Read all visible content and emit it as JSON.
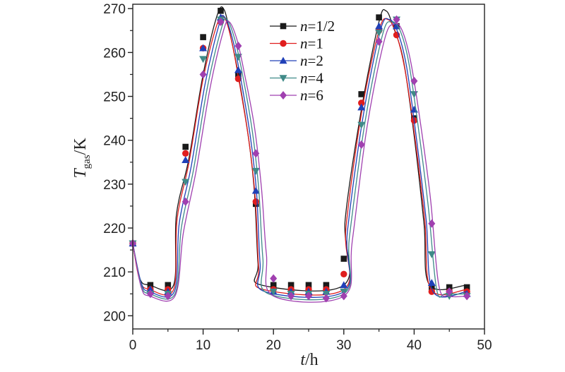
{
  "chart_data": {
    "type": "line",
    "xlabel": {
      "var": "t",
      "unit": "/h"
    },
    "ylabel": {
      "var": "T",
      "sub": "gas",
      "unit": "/K"
    },
    "xlim": [
      0,
      50
    ],
    "ylim": [
      197,
      271
    ],
    "xticks": [
      0,
      10,
      20,
      30,
      40,
      50
    ],
    "yticks": [
      200,
      210,
      220,
      230,
      240,
      250,
      260,
      270
    ],
    "grid": false,
    "legend_position": "top-center",
    "series": [
      {
        "name": "=1/2",
        "var": "n",
        "color": "#1a1a1a",
        "marker": "square",
        "curve": [
          [
            0,
            216.5
          ],
          [
            1,
            208.5
          ],
          [
            2.4,
            207
          ],
          [
            5.8,
            207
          ],
          [
            6.2,
            223
          ],
          [
            8,
            236
          ],
          [
            10,
            255
          ],
          [
            12,
            268.5
          ],
          [
            13,
            269.7
          ],
          [
            14,
            263
          ],
          [
            15,
            255
          ],
          [
            16.5,
            240
          ],
          [
            17.3,
            228
          ],
          [
            17.8,
            212
          ],
          [
            18.3,
            207
          ],
          [
            30,
            207
          ],
          [
            30.2,
            222
          ],
          [
            32.5,
            247
          ],
          [
            35,
            267
          ],
          [
            36,
            269.5
          ],
          [
            37,
            266
          ],
          [
            38.5,
            258
          ],
          [
            40,
            241
          ],
          [
            41.4,
            221
          ],
          [
            42.2,
            207
          ],
          [
            47.5,
            207
          ]
        ],
        "points": [
          [
            0,
            216.5
          ],
          [
            2.5,
            207
          ],
          [
            5,
            207
          ],
          [
            7.5,
            238.5
          ],
          [
            10,
            263.5
          ],
          [
            12.5,
            269.5
          ],
          [
            15,
            255
          ],
          [
            17.5,
            225.5
          ],
          [
            20,
            207
          ],
          [
            22.5,
            207
          ],
          [
            25,
            207
          ],
          [
            27.5,
            207
          ],
          [
            30,
            213
          ],
          [
            32.5,
            250.5
          ],
          [
            35,
            268
          ],
          [
            37.5,
            266
          ],
          [
            40,
            245
          ],
          [
            42.5,
            206.5
          ],
          [
            45,
            206.5
          ],
          [
            47.5,
            206.5
          ]
        ]
      },
      {
        "name": "=1",
        "var": "n",
        "color": "#e01e1e",
        "marker": "circle",
        "curve": [
          [
            0,
            216.5
          ],
          [
            1,
            208
          ],
          [
            2.4,
            206
          ],
          [
            5.8,
            206
          ],
          [
            6.3,
            222
          ],
          [
            8,
            235
          ],
          [
            10,
            254
          ],
          [
            12,
            266.5
          ],
          [
            13,
            268
          ],
          [
            14,
            263
          ],
          [
            15,
            254.5
          ],
          [
            16.5,
            240
          ],
          [
            17.4,
            227
          ],
          [
            17.9,
            211
          ],
          [
            18.5,
            206
          ],
          [
            30,
            206
          ],
          [
            30.3,
            220
          ],
          [
            32.5,
            246
          ],
          [
            35,
            265
          ],
          [
            36.3,
            267.5
          ],
          [
            37.5,
            264
          ],
          [
            38.7,
            256
          ],
          [
            40,
            242
          ],
          [
            41.5,
            222
          ],
          [
            42.4,
            206
          ],
          [
            47.5,
            206
          ]
        ],
        "points": [
          [
            0,
            216.5
          ],
          [
            2.5,
            206
          ],
          [
            5,
            206
          ],
          [
            7.5,
            237
          ],
          [
            10,
            261
          ],
          [
            12.5,
            267
          ],
          [
            15,
            254
          ],
          [
            17.5,
            226
          ],
          [
            20,
            206
          ],
          [
            22.5,
            206
          ],
          [
            25,
            206
          ],
          [
            27.5,
            206
          ],
          [
            30,
            209.5
          ],
          [
            32.5,
            248.5
          ],
          [
            35,
            265
          ],
          [
            37.5,
            264
          ],
          [
            40,
            244.5
          ],
          [
            42.5,
            205.5
          ],
          [
            45,
            205.5
          ],
          [
            47.5,
            205.5
          ]
        ]
      },
      {
        "name": "=2",
        "var": "n",
        "color": "#2040b8",
        "marker": "triangle-up",
        "curve": [
          [
            0,
            216.5
          ],
          [
            1.2,
            207.5
          ],
          [
            2.4,
            205.5
          ],
          [
            5.9,
            205.5
          ],
          [
            6.6,
            221
          ],
          [
            8.3,
            234
          ],
          [
            10.3,
            253
          ],
          [
            12.3,
            266.5
          ],
          [
            13.1,
            268
          ],
          [
            14.2,
            263
          ],
          [
            15.3,
            254.5
          ],
          [
            16.7,
            241
          ],
          [
            17.6,
            228
          ],
          [
            18.1,
            212
          ],
          [
            18.8,
            205.5
          ],
          [
            30,
            205.5
          ],
          [
            30.5,
            219
          ],
          [
            32.7,
            245
          ],
          [
            35.2,
            265
          ],
          [
            36.5,
            267.5
          ],
          [
            37.7,
            264.5
          ],
          [
            38.9,
            257
          ],
          [
            40.2,
            242
          ],
          [
            41.7,
            222
          ],
          [
            42.7,
            205.5
          ],
          [
            47.5,
            205.5
          ]
        ],
        "points": [
          [
            0,
            216.5
          ],
          [
            2.5,
            206
          ],
          [
            5,
            205.5
          ],
          [
            7.5,
            235.5
          ],
          [
            10,
            261
          ],
          [
            12.5,
            268
          ],
          [
            15,
            256
          ],
          [
            17.5,
            228.5
          ],
          [
            20,
            205.5
          ],
          [
            22.5,
            205.5
          ],
          [
            25,
            205.5
          ],
          [
            27.5,
            205.5
          ],
          [
            30,
            207
          ],
          [
            32.5,
            247.5
          ],
          [
            35,
            266
          ],
          [
            37.5,
            266
          ],
          [
            40,
            247
          ],
          [
            42.5,
            207.5
          ],
          [
            45,
            205
          ],
          [
            47.5,
            205
          ]
        ]
      },
      {
        "name": "=4",
        "var": "n",
        "color": "#3f8a88",
        "marker": "triangle-down",
        "curve": [
          [
            0,
            216.5
          ],
          [
            1.2,
            207
          ],
          [
            2.4,
            205
          ],
          [
            6,
            205
          ],
          [
            6.9,
            220
          ],
          [
            8.6,
            233
          ],
          [
            10.6,
            252
          ],
          [
            12.6,
            265.5
          ],
          [
            13.4,
            267.5
          ],
          [
            14.5,
            263
          ],
          [
            15.6,
            255
          ],
          [
            17,
            242
          ],
          [
            17.9,
            229
          ],
          [
            18.5,
            213
          ],
          [
            19.3,
            205
          ],
          [
            30,
            205
          ],
          [
            30.8,
            218
          ],
          [
            33,
            244
          ],
          [
            35.5,
            264
          ],
          [
            36.8,
            267
          ],
          [
            38,
            265
          ],
          [
            39.2,
            258
          ],
          [
            40.5,
            244
          ],
          [
            42,
            225
          ],
          [
            43.2,
            206
          ],
          [
            44.5,
            205
          ],
          [
            47.5,
            205
          ]
        ],
        "points": [
          [
            0,
            216.5
          ],
          [
            2.5,
            205
          ],
          [
            5,
            205
          ],
          [
            7.5,
            230.5
          ],
          [
            10,
            258.5
          ],
          [
            12.5,
            267.5
          ],
          [
            15,
            259
          ],
          [
            17.5,
            233
          ],
          [
            20,
            205.5
          ],
          [
            22.5,
            205
          ],
          [
            25,
            205
          ],
          [
            27.5,
            205
          ],
          [
            30,
            205.5
          ],
          [
            32.5,
            243.5
          ],
          [
            35,
            264.5
          ],
          [
            37.5,
            267.5
          ],
          [
            40,
            250.5
          ],
          [
            42.5,
            214
          ],
          [
            45,
            204.5
          ],
          [
            47.5,
            204.5
          ]
        ]
      },
      {
        "name": "=6",
        "var": "n",
        "color": "#a040b0",
        "marker": "diamond",
        "curve": [
          [
            0,
            216.5
          ],
          [
            1.2,
            206.5
          ],
          [
            2.4,
            204.5
          ],
          [
            6,
            204.5
          ],
          [
            7.2,
            219
          ],
          [
            9,
            233
          ],
          [
            11,
            252
          ],
          [
            12.9,
            265
          ],
          [
            13.7,
            267
          ],
          [
            14.8,
            263
          ],
          [
            15.9,
            255
          ],
          [
            17.3,
            243
          ],
          [
            18.3,
            229
          ],
          [
            19,
            214
          ],
          [
            20,
            204.5
          ],
          [
            30,
            204.5
          ],
          [
            31.2,
            217
          ],
          [
            33.3,
            243
          ],
          [
            35.8,
            263
          ],
          [
            37.2,
            266.5
          ],
          [
            38.3,
            265
          ],
          [
            39.5,
            258
          ],
          [
            40.8,
            245
          ],
          [
            42.3,
            227
          ],
          [
            43.5,
            207
          ],
          [
            45,
            204.5
          ],
          [
            47.5,
            204.5
          ]
        ],
        "points": [
          [
            0,
            216.5
          ],
          [
            2.5,
            205
          ],
          [
            5,
            204.5
          ],
          [
            7.5,
            226
          ],
          [
            10,
            255
          ],
          [
            12.5,
            267
          ],
          [
            15,
            261.5
          ],
          [
            17.5,
            237
          ],
          [
            20,
            208.5
          ],
          [
            22.5,
            204.5
          ],
          [
            25,
            204.5
          ],
          [
            27.5,
            204
          ],
          [
            30,
            204.5
          ],
          [
            32.5,
            239
          ],
          [
            35,
            262.5
          ],
          [
            37.5,
            267.5
          ],
          [
            40,
            253.5
          ],
          [
            42.5,
            221
          ],
          [
            45,
            205.5
          ],
          [
            47.5,
            204.5
          ]
        ]
      }
    ]
  }
}
